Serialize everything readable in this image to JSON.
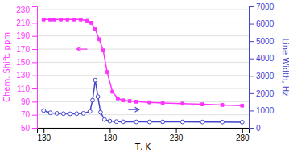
{
  "chart_data": {
    "type": "line",
    "xlabel": "T, K",
    "ylabel": "Chem. Shift, ppm",
    "y2label": "Line Width, Hz",
    "xlim": [
      125,
      285
    ],
    "xticks": [
      130,
      180,
      230,
      280
    ],
    "ylim": [
      50,
      235
    ],
    "yticks": [
      50,
      70,
      90,
      110,
      130,
      150,
      170,
      190,
      210,
      230
    ],
    "y2lim": [
      0,
      7000
    ],
    "y2ticks": [
      0,
      1000,
      2000,
      3000,
      4000,
      5000,
      6000,
      7000
    ],
    "grid": true,
    "background": "#FFFFFF",
    "series": [
      {
        "x": [
          130,
          135,
          138,
          143,
          148,
          153,
          158,
          163,
          166,
          169,
          172,
          175,
          178,
          182,
          186,
          190,
          195,
          200,
          210,
          220,
          235,
          250,
          265,
          280
        ],
        "values": [
          215,
          215,
          215,
          215,
          215,
          215,
          215,
          213,
          210,
          200,
          185,
          168,
          135,
          105,
          95,
          92,
          91,
          90,
          89,
          88,
          87,
          86,
          85,
          84
        ],
        "color": "#FF33FF",
        "marker": "square",
        "axis": "y"
      },
      {
        "x": [
          130,
          135,
          140,
          145,
          150,
          155,
          160,
          165,
          167,
          169,
          171,
          173,
          176,
          180,
          185,
          190,
          200,
          210,
          220,
          235,
          250,
          265,
          280
        ],
        "values": [
          1000,
          870,
          840,
          820,
          810,
          820,
          840,
          950,
          1600,
          2750,
          1800,
          900,
          480,
          390,
          360,
          350,
          345,
          345,
          350,
          345,
          340,
          335,
          330
        ],
        "color": "#4444CC",
        "marker": "circle",
        "axis": "y2"
      }
    ],
    "arrows": [
      {
        "x_from": 163,
        "x_to": 155,
        "y": 170,
        "color": "#FF33FF"
      },
      {
        "x_from": 194,
        "x_to": 202,
        "y": 78,
        "color": "#4444CC"
      }
    ]
  }
}
